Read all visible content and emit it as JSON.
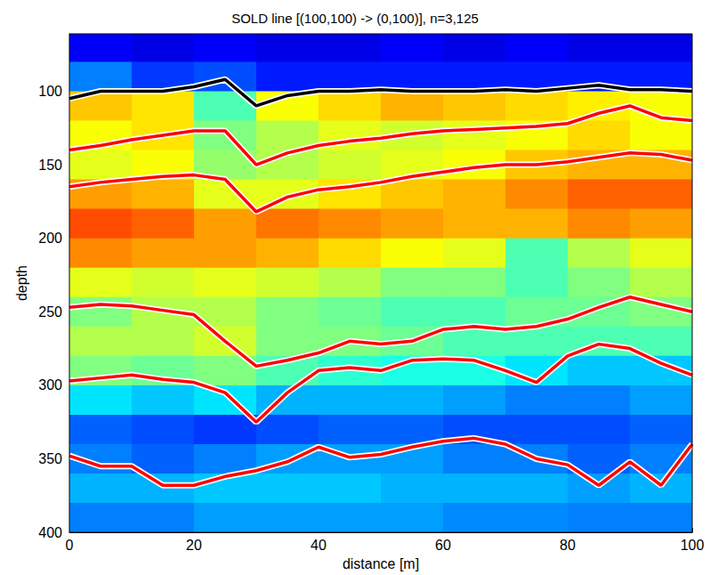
{
  "chart_data": {
    "type": "line",
    "title": "SOLD line [(100,100) -> (0,100)], n=3,125",
    "xlabel": "distance [m]",
    "ylabel": "depth",
    "xlim": [
      0,
      100
    ],
    "xticks": [
      0,
      20,
      40,
      60,
      80,
      100
    ],
    "ylim": [
      61,
      400
    ],
    "yticks": [
      100,
      150,
      200,
      250,
      300,
      350,
      400
    ],
    "grid": false,
    "line_style": "solid",
    "x": [
      0,
      5,
      10,
      15,
      20,
      25,
      30,
      35,
      40,
      45,
      50,
      55,
      60,
      65,
      70,
      75,
      80,
      85,
      90,
      95,
      100
    ],
    "series": [
      {
        "color": "#000000",
        "values": [
          105,
          100,
          100,
          100,
          97,
          92,
          110,
          103,
          100,
          100,
          99,
          100,
          100,
          100,
          99,
          100,
          98,
          96,
          99,
          99,
          100
        ]
      },
      {
        "color": "#ff0000",
        "values": [
          140,
          137,
          133,
          130,
          127,
          127,
          150,
          142,
          137,
          134,
          132,
          129,
          127,
          126,
          125,
          124,
          122,
          115,
          110,
          118,
          120
        ]
      },
      {
        "color": "#ff0000",
        "values": [
          165,
          162,
          160,
          158,
          157,
          160,
          182,
          172,
          167,
          165,
          162,
          158,
          155,
          152,
          150,
          150,
          148,
          145,
          142,
          143,
          147
        ]
      },
      {
        "color": "#ff0000",
        "values": [
          247,
          245,
          246,
          249,
          252,
          270,
          287,
          283,
          278,
          270,
          272,
          270,
          262,
          260,
          262,
          260,
          255,
          247,
          240,
          245,
          250
        ]
      },
      {
        "color": "#ff0000",
        "values": [
          297,
          295,
          293,
          296,
          298,
          305,
          325,
          305,
          290,
          288,
          290,
          283,
          282,
          283,
          290,
          298,
          280,
          272,
          275,
          285,
          293
        ]
      },
      {
        "color": "#ff0000",
        "values": [
          348,
          355,
          355,
          368,
          368,
          362,
          358,
          352,
          342,
          349,
          347,
          342,
          338,
          336,
          340,
          350,
          354,
          368,
          352,
          368,
          340
        ]
      }
    ],
    "heatmap": {
      "x_edges": [
        0,
        10,
        20,
        30,
        40,
        50,
        60,
        70,
        80,
        90,
        100
      ],
      "y_edges": [
        61,
        80,
        100,
        120,
        140,
        160,
        180,
        200,
        220,
        240,
        260,
        280,
        300,
        320,
        340,
        360,
        380,
        400
      ],
      "crange": [
        0,
        1
      ],
      "values": [
        [
          0.12,
          0.1,
          0.12,
          0.1,
          0.1,
          0.12,
          0.1,
          0.12,
          0.1,
          0.1
        ],
        [
          0.25,
          0.18,
          0.2,
          0.15,
          0.15,
          0.15,
          0.15,
          0.15,
          0.15,
          0.15
        ],
        [
          0.68,
          0.65,
          0.45,
          0.62,
          0.66,
          0.7,
          0.68,
          0.66,
          0.64,
          0.62
        ],
        [
          0.62,
          0.65,
          0.5,
          0.55,
          0.6,
          0.58,
          0.6,
          0.62,
          0.66,
          0.62
        ],
        [
          0.6,
          0.62,
          0.52,
          0.55,
          0.58,
          0.6,
          0.62,
          0.68,
          0.7,
          0.7
        ],
        [
          0.72,
          0.7,
          0.6,
          0.6,
          0.65,
          0.68,
          0.7,
          0.74,
          0.78,
          0.78
        ],
        [
          0.8,
          0.78,
          0.72,
          0.76,
          0.74,
          0.72,
          0.7,
          0.7,
          0.74,
          0.72
        ],
        [
          0.74,
          0.72,
          0.72,
          0.7,
          0.66,
          0.62,
          0.6,
          0.45,
          0.55,
          0.6
        ],
        [
          0.6,
          0.58,
          0.6,
          0.58,
          0.55,
          0.5,
          0.5,
          0.45,
          0.5,
          0.55
        ],
        [
          0.5,
          0.55,
          0.55,
          0.5,
          0.48,
          0.45,
          0.45,
          0.48,
          0.48,
          0.5
        ],
        [
          0.55,
          0.55,
          0.58,
          0.5,
          0.5,
          0.48,
          0.45,
          0.45,
          0.45,
          0.45
        ],
        [
          0.5,
          0.48,
          0.5,
          0.45,
          0.42,
          0.4,
          0.4,
          0.35,
          0.32,
          0.32
        ],
        [
          0.35,
          0.32,
          0.35,
          0.3,
          0.3,
          0.3,
          0.28,
          0.25,
          0.25,
          0.28
        ],
        [
          0.22,
          0.2,
          0.18,
          0.2,
          0.22,
          0.22,
          0.2,
          0.2,
          0.2,
          0.22
        ],
        [
          0.25,
          0.22,
          0.25,
          0.28,
          0.28,
          0.28,
          0.25,
          0.25,
          0.22,
          0.25
        ],
        [
          0.3,
          0.3,
          0.32,
          0.32,
          0.32,
          0.3,
          0.3,
          0.3,
          0.28,
          0.3
        ],
        [
          0.25,
          0.25,
          0.28,
          0.28,
          0.28,
          0.28,
          0.26,
          0.26,
          0.25,
          0.25
        ]
      ]
    }
  }
}
